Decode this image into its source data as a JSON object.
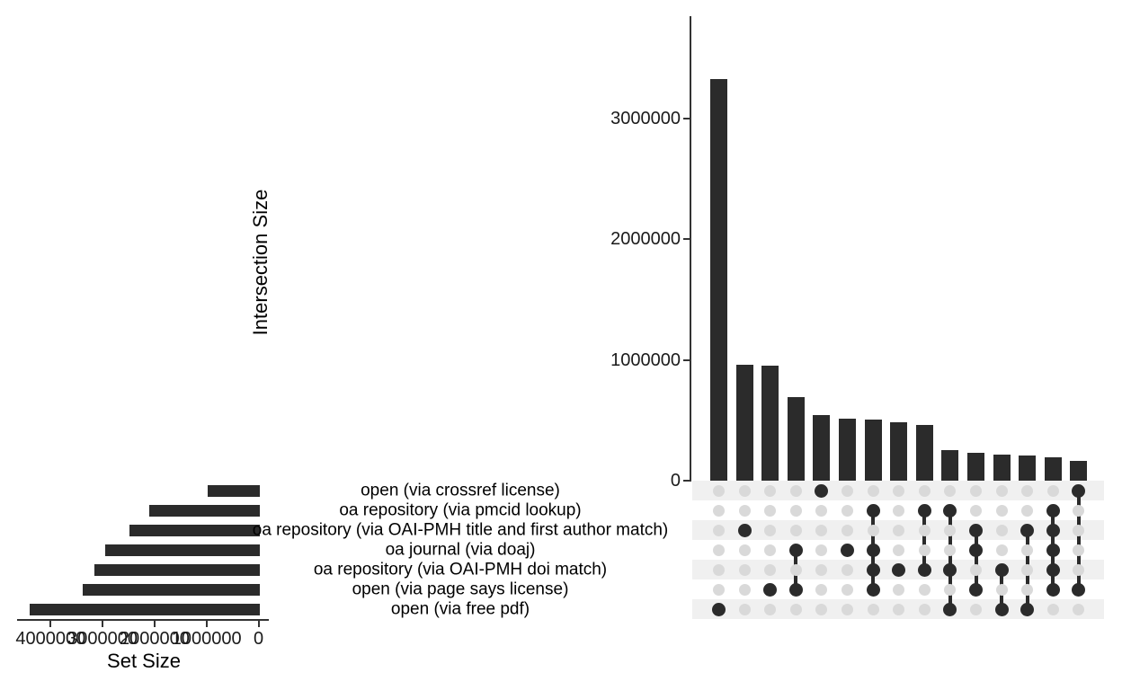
{
  "labels": {
    "intersection_size_axis": "Intersection Size",
    "set_size_axis": "Set Size"
  },
  "sets": [
    {
      "name": "open (via crossref license)",
      "size": 1010000
    },
    {
      "name": "oa repository (via pmcid lookup)",
      "size": 2130000
    },
    {
      "name": "oa repository (via OAI-PMH title and first author match)",
      "size": 2510000
    },
    {
      "name": "oa journal (via doaj)",
      "size": 2970000
    },
    {
      "name": "oa repository (via OAI-PMH doi match)",
      "size": 3180000
    },
    {
      "name": "open (via page says license)",
      "size": 3410000
    },
    {
      "name": "open (via free pdf)",
      "size": 4430000
    }
  ],
  "chart_data": [
    {
      "type": "bar",
      "id": "intersection_size",
      "ylabel": "Intersection Size",
      "orientation": "vertical",
      "grid": false,
      "legend": "none",
      "yticks": [
        0,
        1000000,
        2000000,
        3000000
      ],
      "ylim": [
        0,
        3600000
      ],
      "values": [
        3320000,
        960000,
        950000,
        690000,
        540000,
        515000,
        505000,
        480000,
        460000,
        250000,
        230000,
        215000,
        205000,
        190000,
        160000
      ],
      "memberships": [
        [
          6
        ],
        [
          2
        ],
        [
          5
        ],
        [
          3,
          5
        ],
        [
          0
        ],
        [
          3
        ],
        [
          1,
          3,
          4,
          5
        ],
        [
          4
        ],
        [
          1,
          4
        ],
        [
          1,
          4,
          6
        ],
        [
          2,
          3,
          5
        ],
        [
          4,
          6
        ],
        [
          2,
          6
        ],
        [
          1,
          2,
          3,
          4,
          5
        ],
        [
          0,
          5
        ]
      ]
    },
    {
      "type": "bar",
      "id": "set_size",
      "xlabel": "Set Size",
      "orientation": "horizontal",
      "grid": false,
      "legend": "none",
      "axis_reversed": true,
      "xticks": [
        4000000,
        3000000,
        2000000,
        1000000,
        0
      ],
      "xlim": [
        4600000,
        0
      ],
      "categories": [
        "open (via crossref license)",
        "oa repository (via pmcid lookup)",
        "oa repository (via OAI-PMH title and first author match)",
        "oa journal (via doaj)",
        "oa repository (via OAI-PMH doi match)",
        "open (via page says license)",
        "open (via free pdf)"
      ],
      "values": [
        1010000,
        2130000,
        2510000,
        2970000,
        3180000,
        3410000,
        4430000
      ]
    }
  ],
  "colors": {
    "bar": "#2b2b2b",
    "dot_active": "#2b2b2b",
    "dot_inactive": "#d9d9d9",
    "stripe": "#f0f0f0",
    "axis": "#333333",
    "tick_text": "#1a1a1a"
  }
}
